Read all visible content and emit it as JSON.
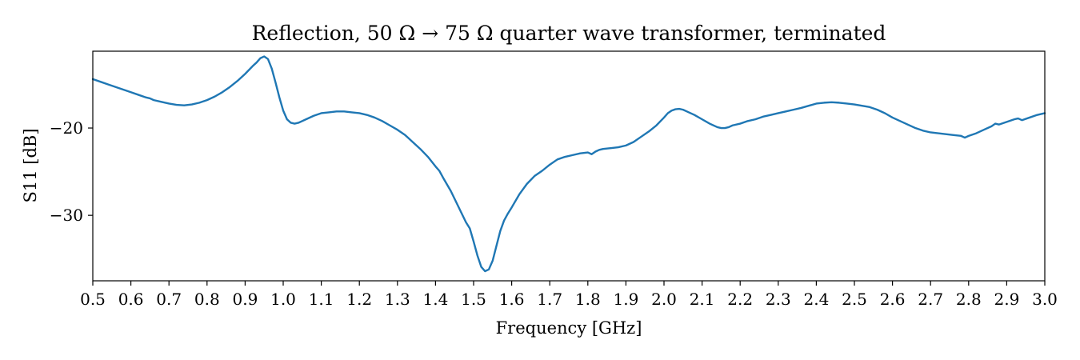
{
  "chart_data": {
    "type": "line",
    "title": "Reflection, 50 Ω → 75 Ω quarter wave transformer, terminated",
    "xlabel": "Frequency [GHz]",
    "ylabel": "S11 [dB]",
    "xlim": [
      0.5,
      3.0
    ],
    "ylim": [
      -37.5,
      -11.2
    ],
    "grid": false,
    "x_ticks": [
      0.5,
      0.6,
      0.7,
      0.8,
      0.9,
      1.0,
      1.1,
      1.2,
      1.3,
      1.4,
      1.5,
      1.6,
      1.7,
      1.8,
      1.9,
      2.0,
      2.1,
      2.2,
      2.3,
      2.4,
      2.5,
      2.6,
      2.7,
      2.8,
      2.9,
      3.0
    ],
    "x_tick_labels": [
      "0.5",
      "0.6",
      "0.7",
      "0.8",
      "0.9",
      "1.0",
      "1.1",
      "1.2",
      "1.3",
      "1.4",
      "1.5",
      "1.6",
      "1.7",
      "1.8",
      "1.9",
      "2.0",
      "2.1",
      "2.2",
      "2.3",
      "2.4",
      "2.5",
      "2.6",
      "2.7",
      "2.8",
      "2.9",
      "3.0"
    ],
    "y_ticks": [
      -20,
      -30
    ],
    "y_tick_labels": [
      "−20",
      "−30"
    ],
    "series": [
      {
        "color": "#1f77b4",
        "x": [
          0.5,
          0.52,
          0.54,
          0.56,
          0.58,
          0.6,
          0.62,
          0.64,
          0.65,
          0.66,
          0.68,
          0.7,
          0.72,
          0.74,
          0.76,
          0.78,
          0.8,
          0.82,
          0.84,
          0.86,
          0.88,
          0.9,
          0.92,
          0.93,
          0.94,
          0.95,
          0.96,
          0.97,
          0.98,
          0.99,
          1.0,
          1.01,
          1.02,
          1.03,
          1.04,
          1.05,
          1.06,
          1.08,
          1.1,
          1.12,
          1.14,
          1.16,
          1.18,
          1.2,
          1.22,
          1.24,
          1.26,
          1.28,
          1.3,
          1.32,
          1.34,
          1.36,
          1.38,
          1.4,
          1.41,
          1.42,
          1.44,
          1.46,
          1.48,
          1.49,
          1.5,
          1.51,
          1.52,
          1.53,
          1.54,
          1.55,
          1.56,
          1.57,
          1.58,
          1.59,
          1.6,
          1.62,
          1.64,
          1.66,
          1.68,
          1.7,
          1.72,
          1.74,
          1.76,
          1.78,
          1.8,
          1.81,
          1.82,
          1.83,
          1.84,
          1.86,
          1.88,
          1.9,
          1.92,
          1.94,
          1.96,
          1.98,
          2.0,
          2.01,
          2.02,
          2.03,
          2.04,
          2.05,
          2.06,
          2.08,
          2.1,
          2.12,
          2.14,
          2.15,
          2.16,
          2.17,
          2.18,
          2.2,
          2.22,
          2.24,
          2.26,
          2.28,
          2.3,
          2.32,
          2.34,
          2.36,
          2.38,
          2.4,
          2.42,
          2.44,
          2.46,
          2.48,
          2.5,
          2.52,
          2.54,
          2.56,
          2.58,
          2.6,
          2.62,
          2.64,
          2.66,
          2.68,
          2.7,
          2.72,
          2.74,
          2.76,
          2.78,
          2.79,
          2.8,
          2.82,
          2.84,
          2.86,
          2.87,
          2.88,
          2.9,
          2.92,
          2.93,
          2.94,
          2.96,
          2.98,
          3.0
        ],
        "y": [
          -14.4,
          -14.7,
          -15.0,
          -15.3,
          -15.6,
          -15.9,
          -16.2,
          -16.5,
          -16.6,
          -16.8,
          -17.0,
          -17.2,
          -17.35,
          -17.4,
          -17.3,
          -17.1,
          -16.8,
          -16.4,
          -15.9,
          -15.3,
          -14.6,
          -13.8,
          -12.9,
          -12.5,
          -12.0,
          -11.8,
          -12.1,
          -13.2,
          -14.8,
          -16.5,
          -18.0,
          -19.0,
          -19.4,
          -19.5,
          -19.4,
          -19.2,
          -19.0,
          -18.6,
          -18.3,
          -18.2,
          -18.1,
          -18.1,
          -18.2,
          -18.3,
          -18.5,
          -18.8,
          -19.2,
          -19.7,
          -20.2,
          -20.8,
          -21.6,
          -22.4,
          -23.3,
          -24.4,
          -24.9,
          -25.7,
          -27.2,
          -29.0,
          -30.8,
          -31.5,
          -33.0,
          -34.6,
          -35.9,
          -36.4,
          -36.2,
          -35.2,
          -33.5,
          -31.8,
          -30.6,
          -29.8,
          -29.1,
          -27.6,
          -26.4,
          -25.5,
          -24.9,
          -24.2,
          -23.6,
          -23.3,
          -23.1,
          -22.9,
          -22.8,
          -23.0,
          -22.7,
          -22.5,
          -22.4,
          -22.3,
          -22.2,
          -22.0,
          -21.6,
          -21.0,
          -20.4,
          -19.7,
          -18.8,
          -18.3,
          -18.0,
          -17.85,
          -17.8,
          -17.9,
          -18.1,
          -18.5,
          -19.0,
          -19.5,
          -19.9,
          -20.0,
          -20.0,
          -19.9,
          -19.7,
          -19.5,
          -19.2,
          -19.0,
          -18.7,
          -18.5,
          -18.3,
          -18.1,
          -17.9,
          -17.7,
          -17.45,
          -17.2,
          -17.1,
          -17.05,
          -17.1,
          -17.2,
          -17.3,
          -17.45,
          -17.6,
          -17.9,
          -18.3,
          -18.8,
          -19.2,
          -19.6,
          -20.0,
          -20.3,
          -20.5,
          -20.6,
          -20.7,
          -20.8,
          -20.9,
          -21.1,
          -20.9,
          -20.6,
          -20.2,
          -19.8,
          -19.5,
          -19.6,
          -19.3,
          -19.0,
          -18.9,
          -19.1,
          -18.8,
          -18.5,
          -18.3
        ]
      }
    ]
  }
}
